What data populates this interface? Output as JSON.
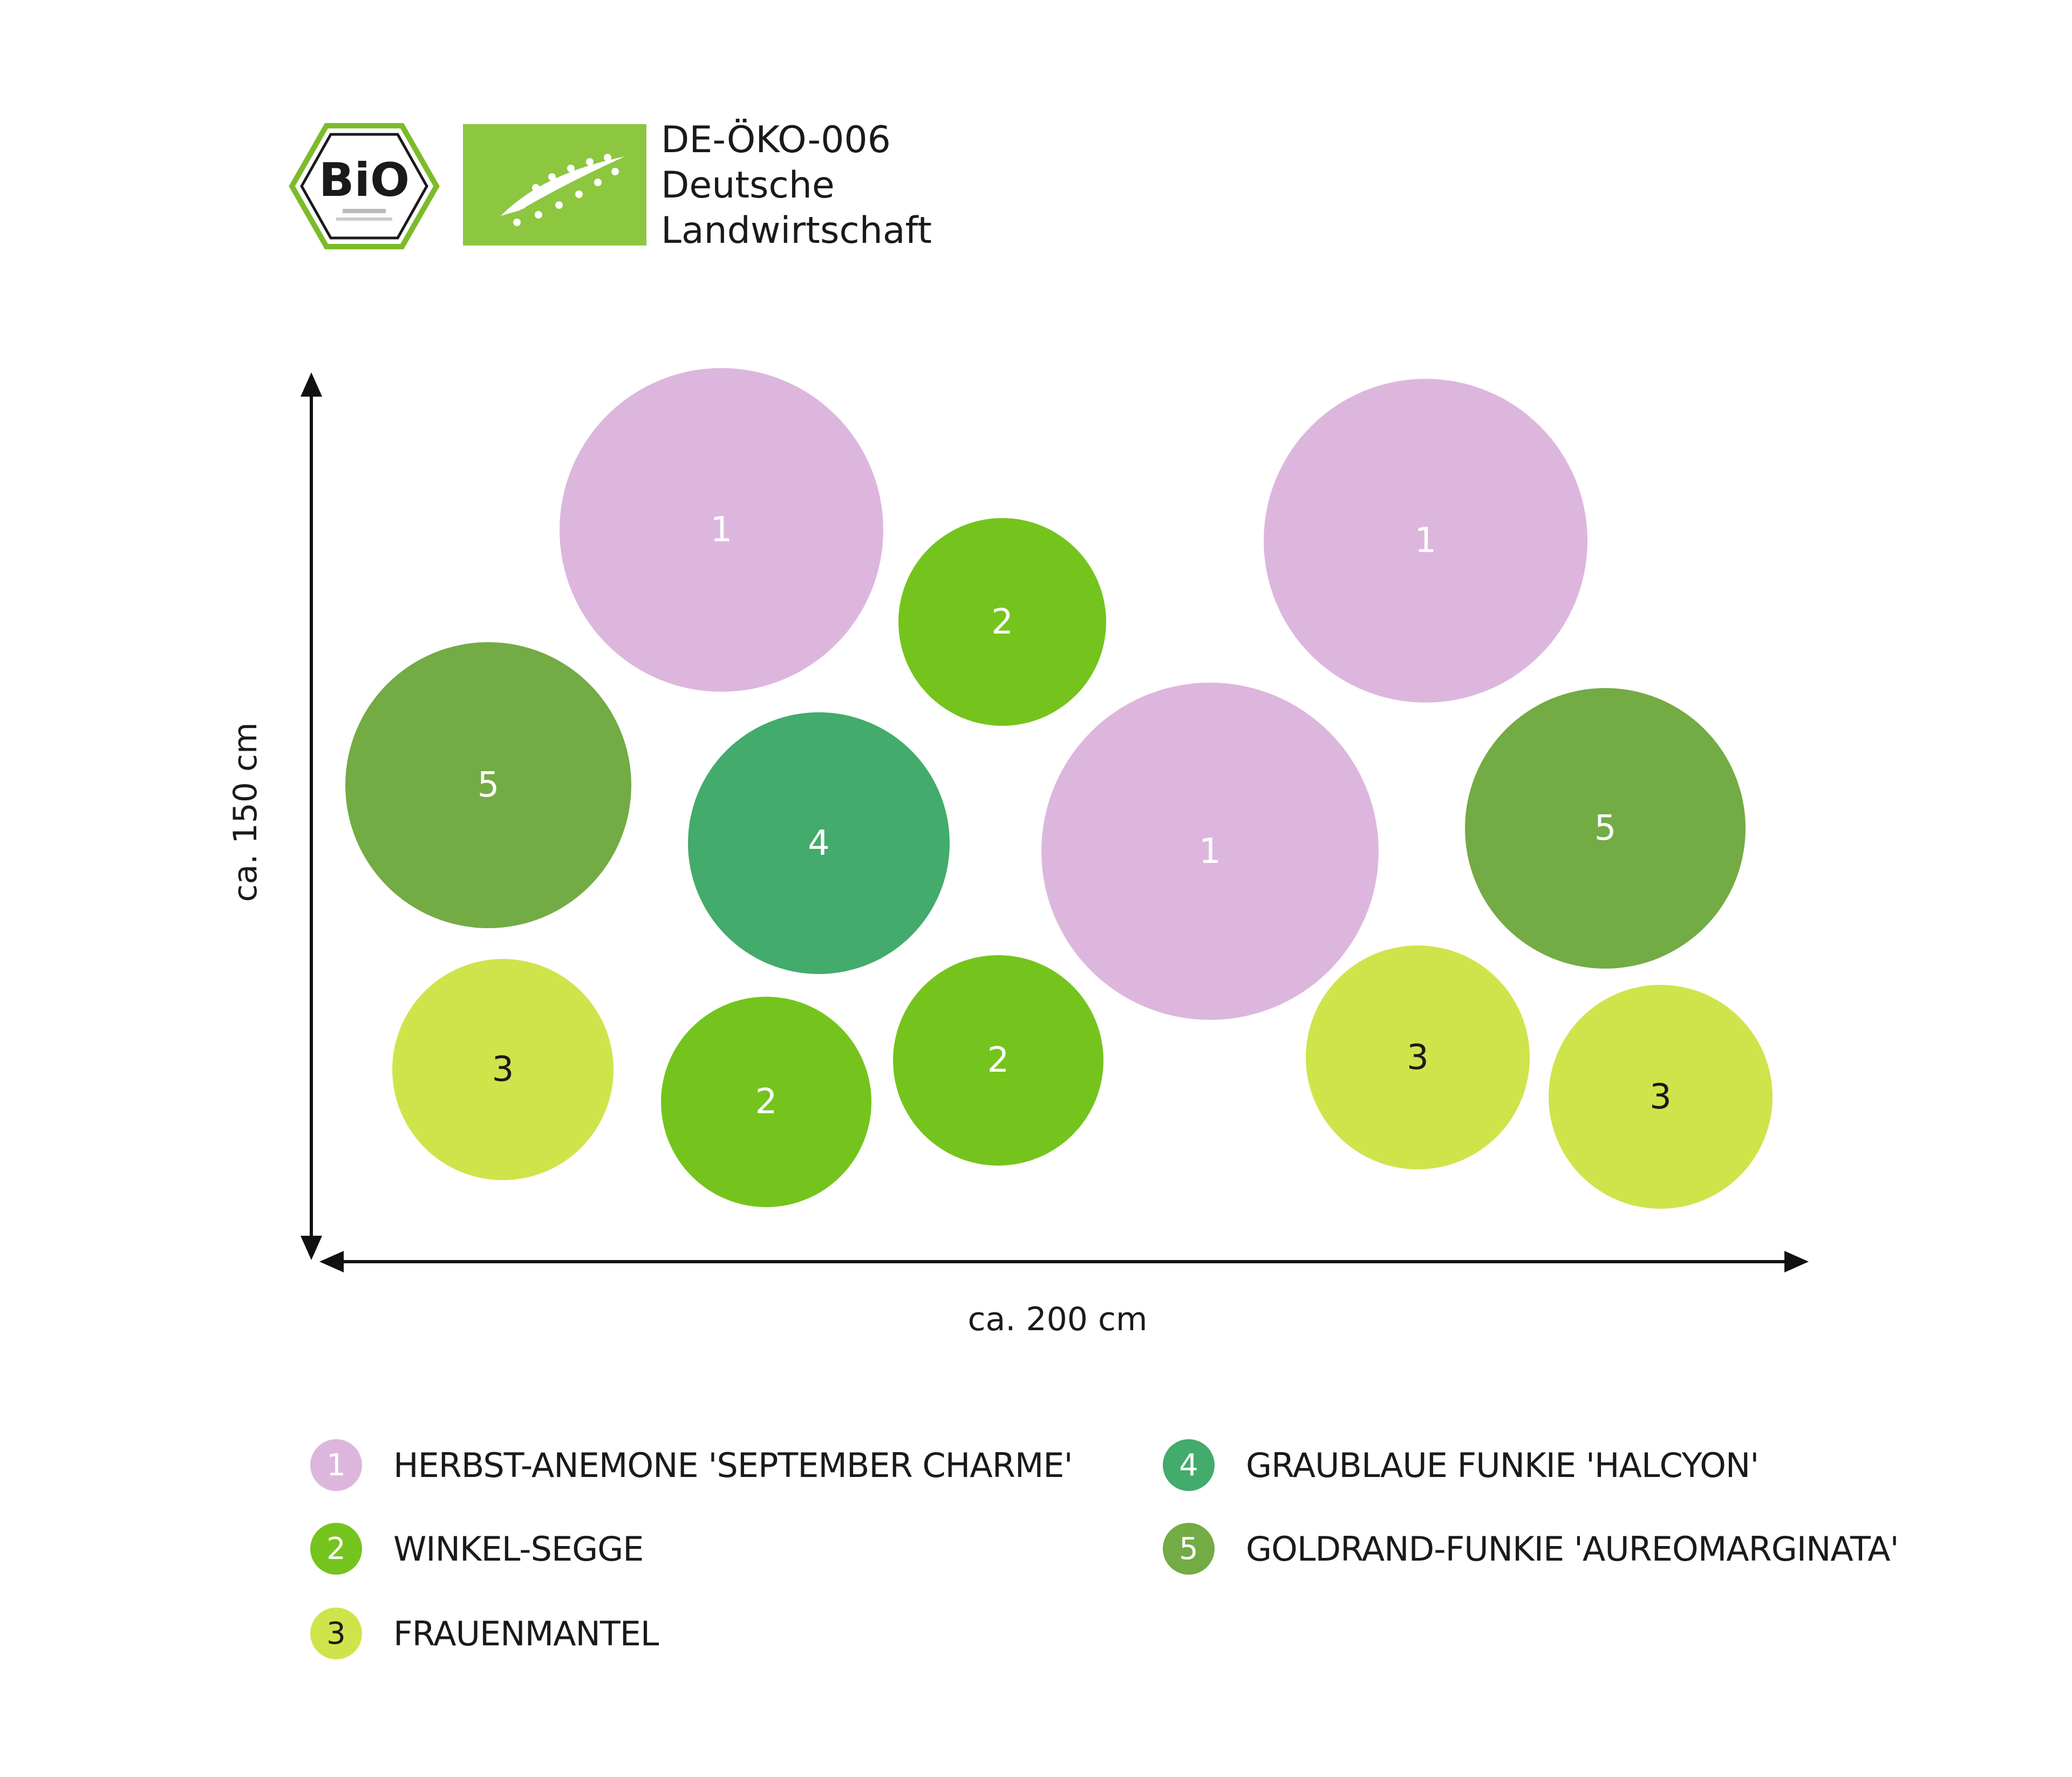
{
  "certification": {
    "bio_seal_text": "BiO",
    "code": "DE-ÖKO-006",
    "origin_line1": "Deutsche",
    "origin_line2": "Landwirtschaft"
  },
  "dimensions": {
    "height_label": "ca. 150 cm",
    "width_label": "ca. 200 cm"
  },
  "colors": {
    "1": "#ddb6dd",
    "2": "#74c41d",
    "3": "#cfe44b",
    "4": "#43ab6b",
    "5": "#73ab44",
    "eu_leaf": "#8dc63f"
  },
  "plants": [
    {
      "number": "1",
      "name": "HERBST-ANEMONE 'SEPTEMBER CHARME'"
    },
    {
      "number": "2",
      "name": "WINKEL-SEGGE"
    },
    {
      "number": "3",
      "name": "FRAUENMANTEL"
    },
    {
      "number": "4",
      "name": "GRAUBLAUE FUNKIE 'HALCYON'"
    },
    {
      "number": "5",
      "name": "GOLDRAND-FUNKIE 'AUREOMARGINATA'"
    }
  ],
  "plan_circles": [
    {
      "number": "1"
    },
    {
      "number": "2"
    },
    {
      "number": "1"
    },
    {
      "number": "5"
    },
    {
      "number": "4"
    },
    {
      "number": "1"
    },
    {
      "number": "5"
    },
    {
      "number": "3"
    },
    {
      "number": "2"
    },
    {
      "number": "2"
    },
    {
      "number": "3"
    },
    {
      "number": "3"
    }
  ]
}
